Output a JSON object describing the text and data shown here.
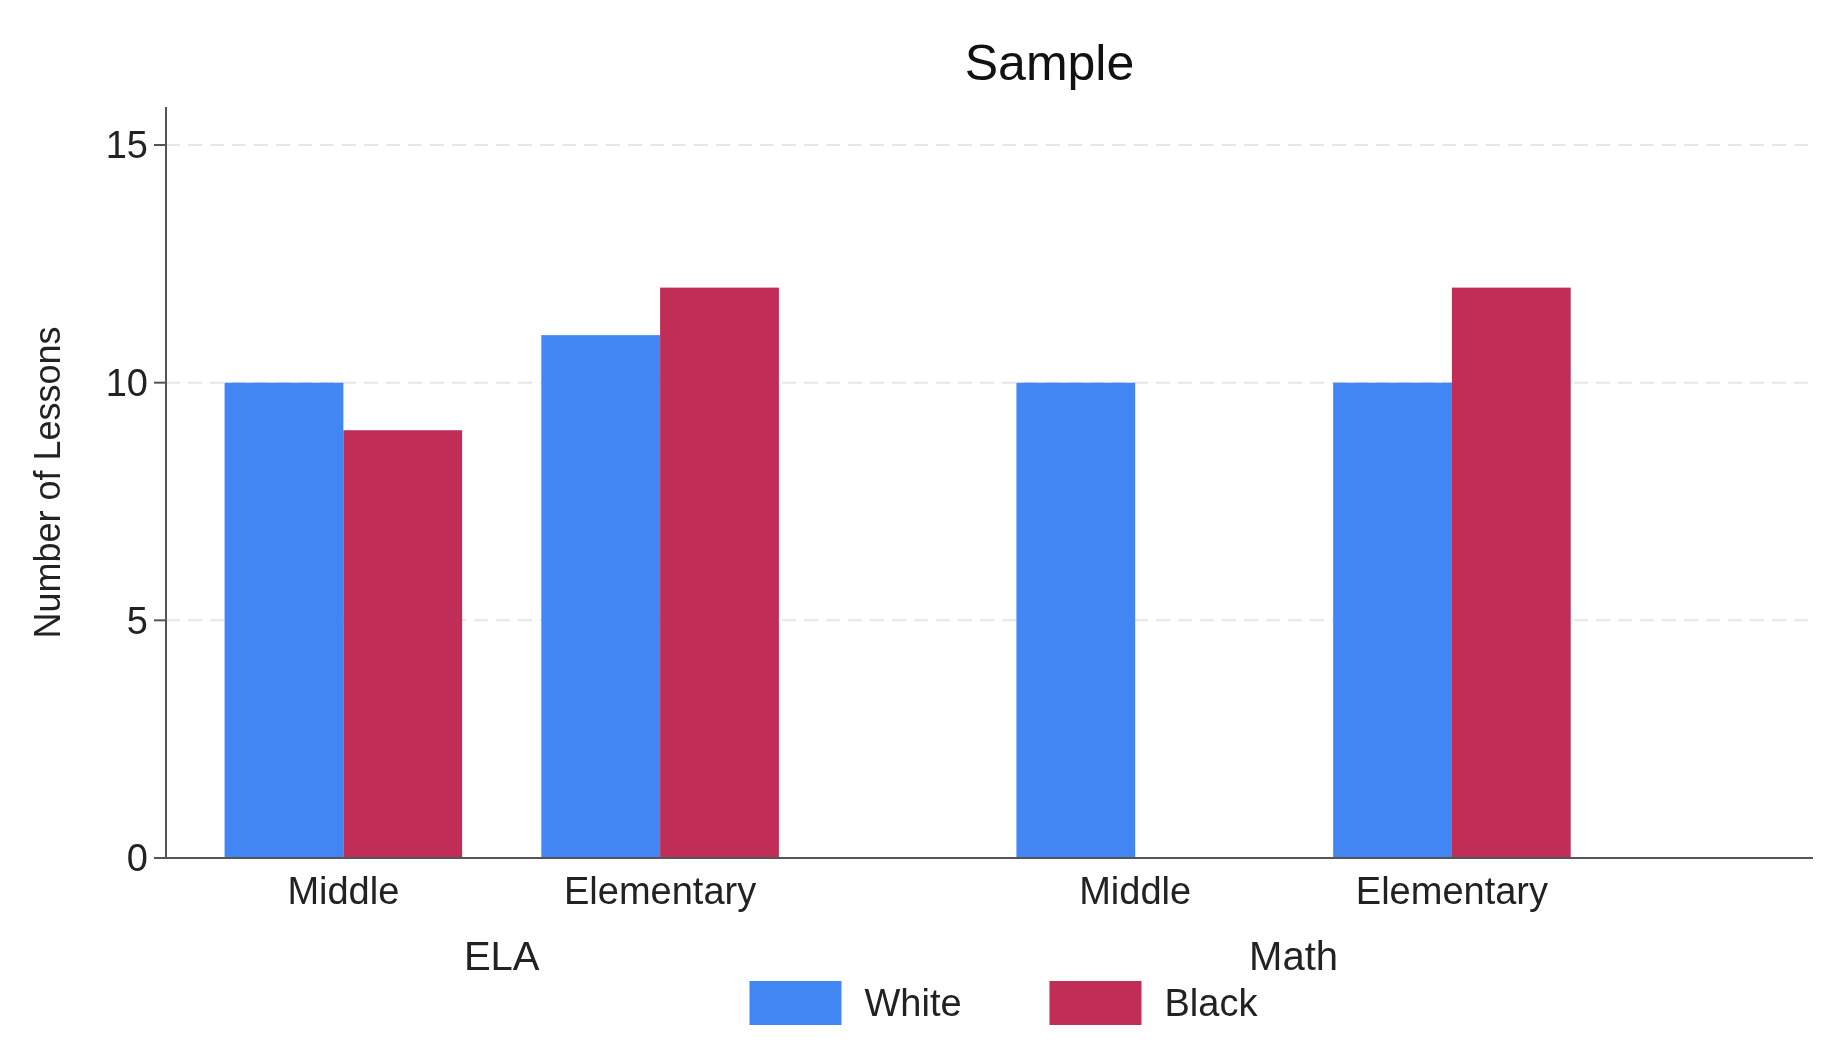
{
  "chart_data": {
    "type": "bar",
    "title": "Sample",
    "ylabel": "Number of Lessons",
    "categories": [
      "Middle",
      "Elementary",
      "Middle",
      "Elementary"
    ],
    "annotations": [
      "ELA",
      "Math"
    ],
    "series": [
      {
        "name": "White",
        "color": "#4286f4",
        "values": [
          10,
          11,
          10,
          10
        ]
      },
      {
        "name": "Black",
        "color": "#c02e58",
        "values": [
          9,
          12,
          null,
          12
        ]
      }
    ],
    "ylim": [
      0,
      15.8
    ],
    "yticks": [
      0,
      5,
      10,
      15
    ],
    "grid": "y",
    "legend": "bottom"
  }
}
